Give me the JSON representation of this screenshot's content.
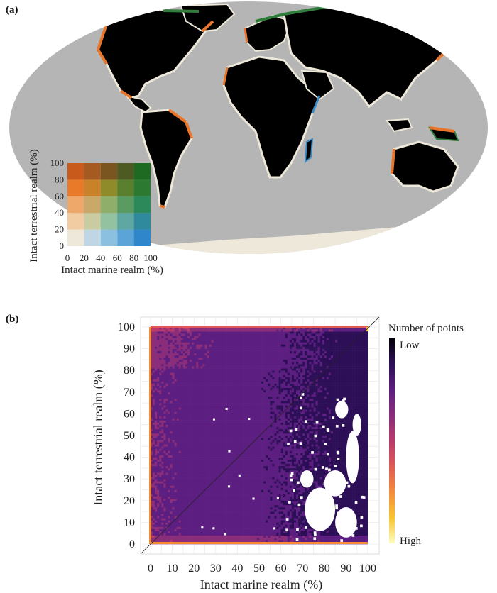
{
  "panels": {
    "a_label": "(a)",
    "b_label": "(b)"
  },
  "colors": {
    "ocean": "#b5b5b5",
    "land": "#000000",
    "coast_light": "#ede8d9",
    "coast_orange": "#e8752a",
    "coast_green": "#2f7d3a",
    "coast_blue": "#3a8cc8",
    "heat_bg": "#2d0f57",
    "heat_edge": "#e9752a",
    "gap_white": "#ffffff"
  },
  "bivariate_legend": {
    "ylabel": "Intact terrestrial realm (%)",
    "xlabel": "Intact marine realm (%)",
    "x_ticks": [
      "0",
      "20",
      "40",
      "60",
      "80",
      "100"
    ],
    "y_ticks": [
      "0",
      "20",
      "40",
      "60",
      "80",
      "100"
    ],
    "grid_colors": [
      [
        "#ede8d9",
        "#bfd6e4",
        "#8cc0e0",
        "#5aa4d8",
        "#2f86cb"
      ],
      [
        "#f1cca2",
        "#c9cca0",
        "#93c2a0",
        "#5ea7a2",
        "#2e8a9c"
      ],
      [
        "#eea86a",
        "#c9a86a",
        "#8fae6a",
        "#5a9b62",
        "#2c8a5a"
      ],
      [
        "#e87a2a",
        "#c9822a",
        "#8f8a2a",
        "#5a7f2e",
        "#2c7a32"
      ],
      [
        "#c85b1c",
        "#a45a20",
        "#7a5520",
        "#4d5a22",
        "#1f6a22"
      ]
    ]
  },
  "chart_data": {
    "type": "heatmap",
    "xlabel": "Intact marine realm (%)",
    "ylabel": "Intact terrestrial realm (%)",
    "xlim": [
      0,
      100
    ],
    "ylim": [
      0,
      100
    ],
    "x_ticks": [
      "0",
      "10",
      "20",
      "30",
      "40",
      "50",
      "60",
      "70",
      "80",
      "90",
      "100"
    ],
    "y_ticks": [
      "0",
      "10",
      "20",
      "30",
      "40",
      "50",
      "60",
      "70",
      "80",
      "90",
      "100"
    ],
    "legend_title": "Number of points",
    "legend_low": "Low",
    "legend_high": "High",
    "colormap": [
      "#000004",
      "#2d0f57",
      "#5c1e80",
      "#8a2d7a",
      "#b73a6c",
      "#e05a55",
      "#f48c3c",
      "#f9c430",
      "#fcfdbf"
    ],
    "reference_line": "y = x",
    "gap_regions_description": "",
    "edge_rows": {
      "y0": "high",
      "y100": "high",
      "x0": "high",
      "x100": "high"
    },
    "grid": true
  }
}
